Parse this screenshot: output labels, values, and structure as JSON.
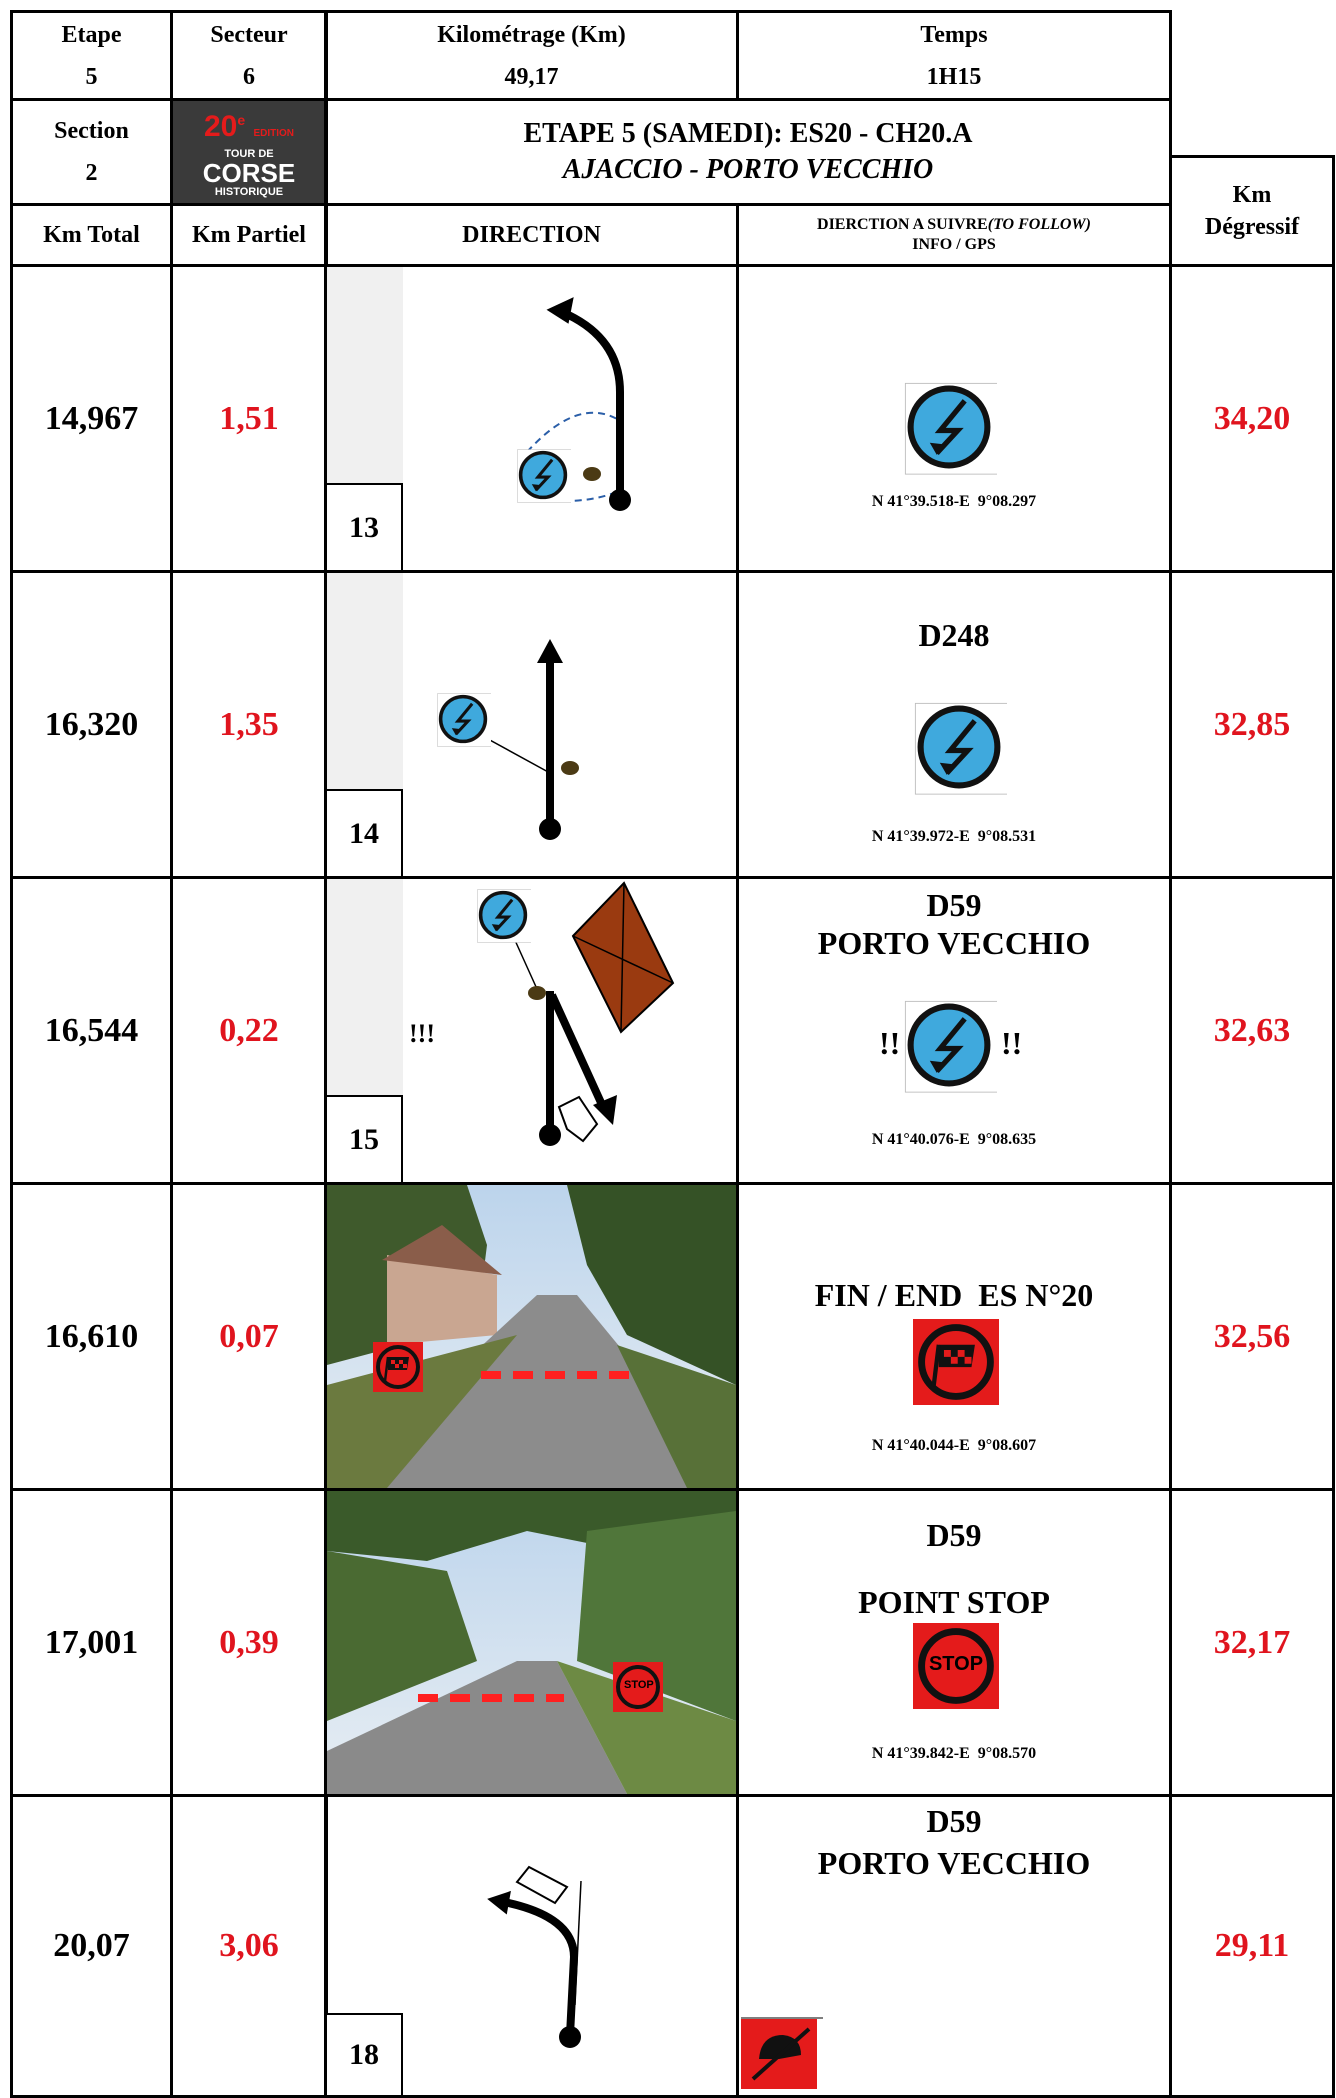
{
  "header": {
    "etape": {
      "label": "Etape",
      "value": "5"
    },
    "secteur": {
      "label": "Secteur",
      "value": "6"
    },
    "kilometrage": {
      "label": "Kilométrage (Km)",
      "value": "49,17"
    },
    "temps": {
      "label": "Temps",
      "value": "1H15"
    },
    "section": {
      "label": "Section",
      "value": "2"
    },
    "logo": {
      "edition": "20",
      "edition_suffix": "e",
      "edition_word": "EDITION",
      "line1": "TOUR DE",
      "line2": "CORSE",
      "line3": "HISTORIQUE"
    },
    "title": "ETAPE 5 (SAMEDI): ES20 - CH20.A",
    "subtitle": "AJACCIO - PORTO VECCHIO"
  },
  "columns": {
    "km_total": "Km Total",
    "km_partiel": "Km Partiel",
    "direction": "DIRECTION",
    "follow": "DIERCTION A SUIVRE",
    "follow_en": "(TO FOLLOW)",
    "info": "INFO / GPS",
    "km_degressif": [
      "Km",
      "Dégressif"
    ]
  },
  "rows": [
    {
      "km_total": "14,967",
      "km_partiel": "1,51",
      "number": "13",
      "gps": "N 41°39.518-E  9°08.297",
      "km_degressif": "34,20"
    },
    {
      "km_total": "16,320",
      "km_partiel": "1,35",
      "number": "14",
      "road": "D248",
      "gps": "N 41°39.972-E  9°08.531",
      "km_degressif": "32,85"
    },
    {
      "km_total": "16,544",
      "km_partiel": "0,22",
      "number": "15",
      "note": "!!!",
      "road": "D59",
      "place": "PORTO VECCHIO",
      "marks": "!!",
      "gps": "N 41°40.076-E  9°08.635",
      "km_degressif": "32,63"
    },
    {
      "km_total": "16,610",
      "km_partiel": "0,07",
      "road": "FIN / END  ES N°20",
      "gps": "N 41°40.044-E  9°08.607",
      "km_degressif": "32,56"
    },
    {
      "km_total": "17,001",
      "km_partiel": "0,39",
      "road": "D59",
      "place": "POINT STOP",
      "sign": "STOP",
      "gps": "N 41°39.842-E  9°08.570",
      "km_degressif": "32,17"
    },
    {
      "km_total": "20,07",
      "km_partiel": "3,06",
      "number": "18",
      "road": "D59",
      "place": "PORTO VECCHIO",
      "km_degressif": "29,11"
    }
  ]
}
